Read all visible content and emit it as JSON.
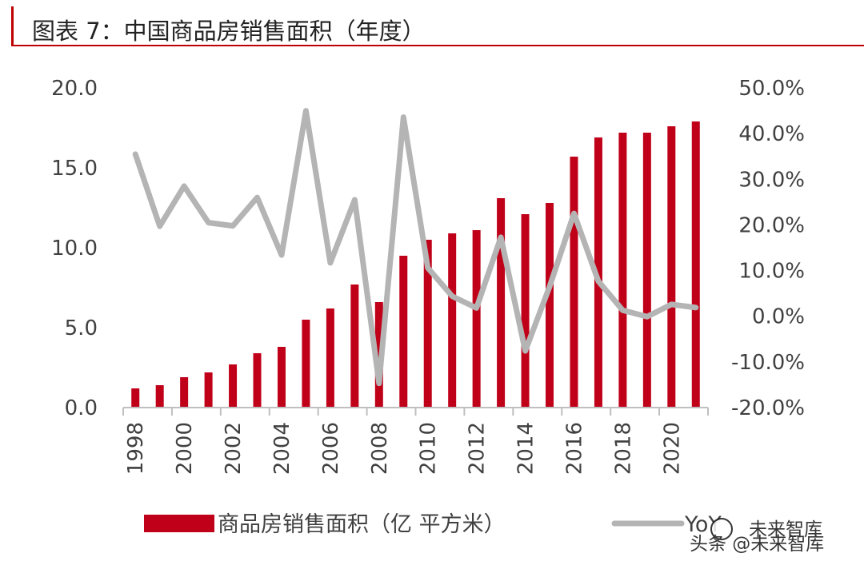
{
  "title": "图表 7：中国商品房销售面积（年度）",
  "watermark": {
    "source": "未来智库",
    "credit": "头条 @未来智库"
  },
  "chart_data": {
    "type": "bar",
    "categories": [
      "1998",
      "1999",
      "2000",
      "2001",
      "2002",
      "2003",
      "2004",
      "2005",
      "2006",
      "2007",
      "2008",
      "2009",
      "2010",
      "2011",
      "2012",
      "2013",
      "2014",
      "2015",
      "2016",
      "2017",
      "2018",
      "2019",
      "2020",
      "2021"
    ],
    "x_tick_labels": [
      "1998",
      "2000",
      "2002",
      "2004",
      "2006",
      "2008",
      "2010",
      "2012",
      "2014",
      "2016",
      "2018",
      "2020"
    ],
    "series": [
      {
        "name": "商品房销售面积（亿 平方米）",
        "type": "bar",
        "axis": "left",
        "color": "#c00018",
        "values": [
          1.2,
          1.4,
          1.9,
          2.2,
          2.7,
          3.4,
          3.8,
          5.5,
          6.2,
          7.7,
          6.6,
          9.5,
          10.5,
          10.9,
          11.1,
          13.1,
          12.1,
          12.8,
          15.7,
          16.9,
          17.2,
          17.2,
          17.6,
          17.9
        ]
      },
      {
        "name": "YoY",
        "type": "line",
        "axis": "right",
        "color": "#b4b4b4",
        "values": [
          35.5,
          19.7,
          28.5,
          20.5,
          19.8,
          26.0,
          13.4,
          45.0,
          11.7,
          25.5,
          -14.7,
          43.6,
          10.6,
          4.4,
          1.8,
          17.3,
          -7.6,
          6.5,
          22.5,
          7.7,
          1.3,
          -0.1,
          2.6,
          1.9
        ]
      }
    ],
    "left_axis": {
      "ticks": [
        "0.0",
        "5.0",
        "10.0",
        "15.0",
        "20.0"
      ],
      "ylim": [
        0,
        20
      ]
    },
    "right_axis": {
      "ticks": [
        "-20.0%",
        "-10.0%",
        "0.0%",
        "10.0%",
        "20.0%",
        "30.0%",
        "40.0%",
        "50.0%"
      ],
      "ylim": [
        -20,
        50
      ]
    },
    "grid": false,
    "legend_position": "bottom"
  }
}
